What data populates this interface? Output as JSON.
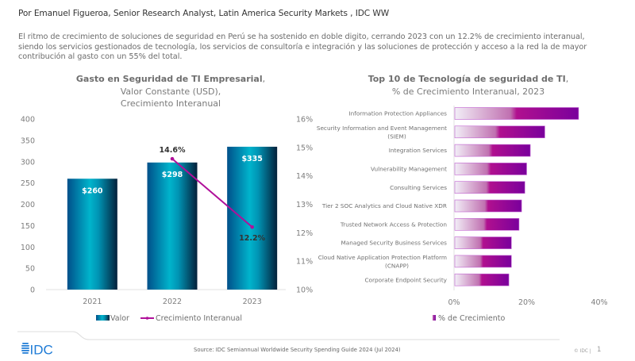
{
  "byline": "Por Emanuel Figueroa, Senior Research Analyst, Latin America Security Markets , IDC WW",
  "intro_lines": [
    "El ritmo de crecimiento de soluciones de seguridad en Perú se ha sostenido en doble digito, cerrando 2023 con un 12.2% de crecimiento interanual,",
    "siendo los servicios gestionados de tecnología, los servicios de consultoría e integración y las soluciones de protección y acceso a la red la de mayor",
    "contribución al gasto con un 55% del total."
  ],
  "colors": {
    "bar_blue_dark": "#004a7c",
    "bar_blue_light": "#00b0c8",
    "bar_blue_edge": "#032c4a",
    "line_magenta": "#b0109a",
    "bar_purple_dark": "#7a0099",
    "bar_purple_mid": "#a8088f",
    "idc_blue": "#1e7bd6"
  },
  "chart_data": [
    {
      "type": "bar+line",
      "title_bold": "Gasto en Seguridad de TI Empresarial",
      "title_rest": ",",
      "subtitle_lines": [
        "Valor Constante (USD),",
        "Crecimiento Interanual"
      ],
      "categories": [
        "2021",
        "2022",
        "2023"
      ],
      "series": [
        {
          "name": "Valor",
          "type": "bar",
          "axis": "left",
          "values": [
            260,
            298,
            335
          ],
          "labels": [
            "$260",
            "$298",
            "$335"
          ]
        },
        {
          "name": "Crecimiento Interanual",
          "type": "line",
          "axis": "right",
          "values": [
            null,
            14.6,
            12.2
          ],
          "labels": [
            "",
            "14.6%",
            "12.2%"
          ]
        }
      ],
      "y_left": {
        "range": [
          0,
          400
        ],
        "ticks": [
          "0",
          "50",
          "100",
          "150",
          "200",
          "250",
          "300",
          "350",
          "400"
        ]
      },
      "y_right": {
        "range": [
          10,
          16
        ],
        "ticks": [
          "10%",
          "11%",
          "12%",
          "13%",
          "14%",
          "15%",
          "16%"
        ]
      },
      "legend": "bottom",
      "grid": false
    },
    {
      "type": "bar",
      "orientation": "horizontal",
      "title_bold": "Top 10 de Tecnología de seguridad de TI",
      "title_rest": ",",
      "subtitle_lines": [
        "% de Crecimiento Interanual, 2023"
      ],
      "categories": [
        [
          "Information Protection Appliances"
        ],
        [
          "Security Information and Event Management",
          "(SIEM)"
        ],
        [
          "Integration Services"
        ],
        [
          "Vulnerability Management"
        ],
        [
          "Consulting Services"
        ],
        [
          "Tier 2 SOC Analytics and Cloud Native XDR"
        ],
        [
          "Trusted Network Access & Protection"
        ],
        [
          "Managed Security Business Services"
        ],
        [
          "Cloud Native Application Protection Platform",
          "(CNAPP)"
        ],
        [
          "Corporate Endpoint Security"
        ]
      ],
      "series": [
        {
          "name": "% de Crecimiento",
          "values": [
            34.3,
            25.0,
            21.0,
            20.0,
            19.5,
            18.6,
            17.9,
            15.8,
            15.8,
            15.1
          ]
        }
      ],
      "x_axis": {
        "range": [
          0,
          40
        ],
        "ticks": [
          "0%",
          "20%",
          "40%"
        ]
      },
      "legend": "bottom",
      "grid": false
    }
  ],
  "footer": {
    "logo_text": "IDC",
    "source": "Source: IDC Semiannual Worldwide Security Spending Guide 2024 (Jul 2024)",
    "copyright": "© IDC |",
    "page_number": "1"
  }
}
